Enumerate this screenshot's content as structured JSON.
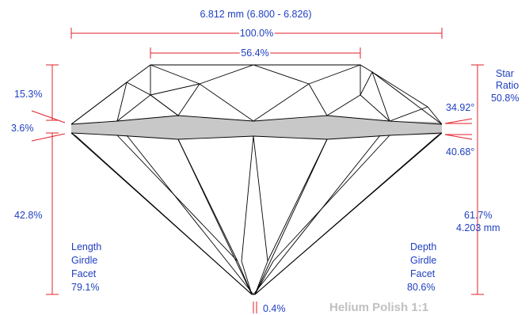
{
  "measurements": {
    "diameter": "6.812 mm (6.800 - 6.826)",
    "total_width": "100.0%",
    "table": "56.4%",
    "crown_height": "15.3%",
    "girdle_thickness": "3.6%",
    "pavilion_depth": "42.8%",
    "culet": "0.4%",
    "crown_angle": "34.92°",
    "pavilion_angle": "40.68°",
    "total_depth_pct": "61.7%",
    "total_depth_mm": "4.203 mm"
  },
  "star_ratio": {
    "line1": "Star",
    "line2": "Ratio",
    "value": "50.8%"
  },
  "length_girdle_facet": {
    "line1": "Length",
    "line2": "Girdle",
    "line3": "Facet",
    "value": "79.1%"
  },
  "depth_girdle_facet": {
    "line1": "Depth",
    "line2": "Girdle",
    "line3": "Facet",
    "value": "80.6%"
  },
  "watermark": "Helium Polish 1:1",
  "colors": {
    "dimension": "#e0202a",
    "label": "#1f3fbf",
    "girdle": "#c8c8c8",
    "watermark": "#c0c0c0"
  }
}
